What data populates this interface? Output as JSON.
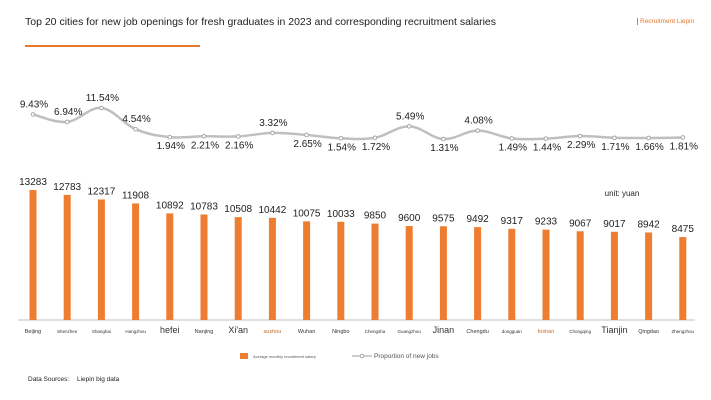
{
  "header": {
    "title": "Top 20 cities for new job openings for fresh graduates in 2023 and corresponding recruitment salaries",
    "brand": "Recruitment Liepin"
  },
  "footer": {
    "source_label": "Data Sources:",
    "source_value": "Liepin big data"
  },
  "colors": {
    "bar": "#ed7d31",
    "line": "#bfbfbf",
    "accent": "#e8782d",
    "axis": "#bfbfbf"
  },
  "chart_data": {
    "type": "bar+line",
    "unit_label": "unit: yuan",
    "categories": [
      "Beijing",
      "Shenzhen",
      "Shanghai",
      "Hangzhou",
      "hefei",
      "Nanjing",
      "Xi'an",
      "suzhou",
      "Wuhan",
      "Ningbo",
      "Chengsha",
      "Guangzhou",
      "Jinan",
      "Chengdu",
      "dongguan",
      "foshan",
      "Chongqing",
      "Tianjin",
      "Qingdao",
      "Zhengzhou"
    ],
    "series": [
      {
        "name": "Average monthly recruitment salary",
        "type": "bar",
        "values": [
          13283,
          12783,
          12317,
          11908,
          10892,
          10783,
          10508,
          10442,
          10075,
          10033,
          9850,
          9600,
          9575,
          9492,
          9317,
          9233,
          9067,
          9017,
          8942,
          8475
        ],
        "labels": [
          "13283",
          "12783",
          "12317",
          "11908",
          "10892",
          "10783",
          "10508",
          "10442",
          "10075",
          "10033",
          "9850",
          "9600",
          "9575",
          "9492",
          "9317",
          "9233",
          "9067",
          "9017",
          "8942",
          "8475"
        ]
      },
      {
        "name": "Proportion of new jobs",
        "type": "line",
        "values": [
          9.43,
          6.94,
          11.54,
          4.54,
          1.94,
          2.21,
          2.16,
          3.32,
          2.65,
          1.54,
          1.72,
          5.49,
          1.31,
          4.08,
          1.49,
          1.44,
          2.29,
          1.71,
          1.66,
          1.81
        ],
        "labels": [
          "9.43%",
          "6.94%",
          "11.54%",
          "4.54%",
          "1.94%",
          "2.21%",
          "2.16%",
          "3.32%",
          "2.65%",
          "1.54%",
          "1.72%",
          "5.49%",
          "1.31%",
          "4.08%",
          "1.49%",
          "1.44%",
          "2.29%",
          "1.71%",
          "1.66%",
          "1.81%"
        ]
      }
    ],
    "legend": [
      "Average monthly recruitment salary",
      "Proportion of new jobs"
    ],
    "legend_position": "bottom"
  }
}
